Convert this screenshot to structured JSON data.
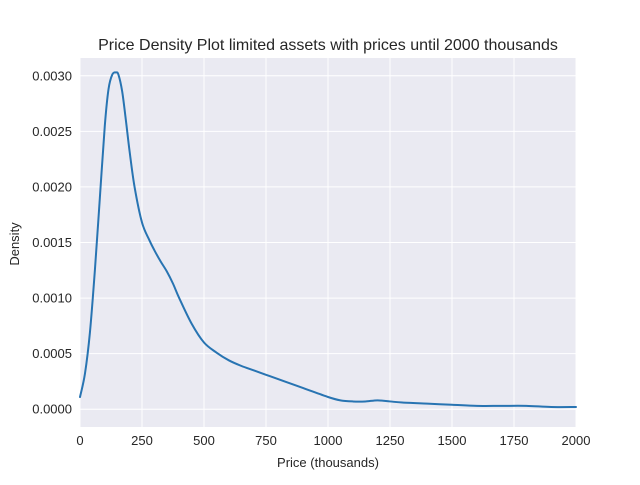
{
  "chart_data": {
    "type": "area",
    "title": "Price Density Plot limited assets with prices until 2000 thousands",
    "xlabel": "Price (thousands)",
    "ylabel": "Density",
    "xlim": [
      0,
      2000
    ],
    "ylim": [
      -0.00016,
      0.00316
    ],
    "x_ticks": [
      0,
      250,
      500,
      750,
      1000,
      1250,
      1500,
      1750,
      2000
    ],
    "x_tick_labels": [
      "0",
      "250",
      "500",
      "750",
      "1000",
      "1250",
      "1500",
      "1750",
      "2000"
    ],
    "y_ticks": [
      0.0,
      0.0005,
      0.001,
      0.0015,
      0.002,
      0.0025,
      0.003
    ],
    "y_tick_labels": [
      "0.0000",
      "0.0005",
      "0.0010",
      "0.0015",
      "0.0020",
      "0.0025",
      "0.0030"
    ],
    "grid": true,
    "colors": {
      "background": "#eaeaf2",
      "grid": "#ffffff",
      "line": "#2874b2"
    },
    "series": [
      {
        "x": [
          0,
          20,
          40,
          60,
          80,
          100,
          115,
          130,
          145,
          155,
          170,
          185,
          200,
          220,
          250,
          280,
          300,
          325,
          350,
          375,
          400,
          450,
          500,
          550,
          600,
          650,
          700,
          750,
          800,
          900,
          1000,
          1050,
          1100,
          1150,
          1200,
          1250,
          1300,
          1400,
          1500,
          1600,
          1700,
          1800,
          1900,
          2000
        ],
        "y": [
          0.00011,
          0.00032,
          0.00069,
          0.00125,
          0.0019,
          0.00255,
          0.00288,
          0.00301,
          0.00303,
          0.00301,
          0.00286,
          0.0026,
          0.00232,
          0.002,
          0.00168,
          0.00152,
          0.00143,
          0.00133,
          0.00124,
          0.00113,
          0.001,
          0.00077,
          0.0006,
          0.00051,
          0.00044,
          0.00039,
          0.00035,
          0.00031,
          0.00027,
          0.00019,
          0.00011,
          8e-05,
          7e-05,
          7e-05,
          8e-05,
          7e-05,
          6e-05,
          5e-05,
          4e-05,
          3e-05,
          3e-05,
          3e-05,
          2e-05,
          2e-05
        ]
      }
    ]
  }
}
